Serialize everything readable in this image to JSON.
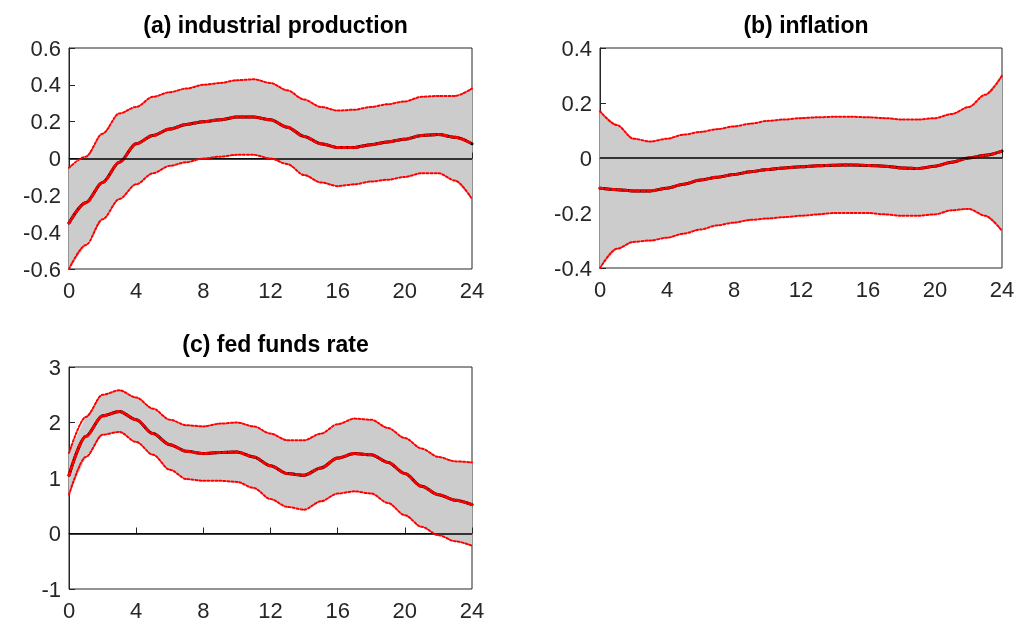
{
  "chart_data": [
    {
      "type": "line",
      "title": "(a) industrial production",
      "x": [
        0,
        1,
        2,
        3,
        4,
        5,
        6,
        7,
        8,
        9,
        10,
        11,
        12,
        13,
        14,
        15,
        16,
        17,
        18,
        19,
        20,
        21,
        22,
        23,
        24
      ],
      "xlim": [
        0,
        24
      ],
      "xticks": [
        0,
        4,
        8,
        12,
        16,
        20,
        24
      ],
      "ylim": [
        -0.6,
        0.6
      ],
      "yticks": [
        -0.6,
        -0.4,
        -0.2,
        0,
        0.2,
        0.4,
        0.6
      ],
      "grid": false,
      "marker": "none",
      "ref_lines": [
        {
          "axis": "y",
          "value": 0,
          "color": "#000000",
          "line_style": "solid"
        }
      ],
      "series": [
        {
          "color": "#000000",
          "line_style": "solid",
          "values": [
            -0.35,
            -0.24,
            -0.13,
            -0.02,
            0.08,
            0.125,
            0.16,
            0.185,
            0.2,
            0.21,
            0.225,
            0.225,
            0.21,
            0.17,
            0.12,
            0.08,
            0.06,
            0.06,
            0.075,
            0.09,
            0.105,
            0.125,
            0.13,
            0.115,
            0.08
          ],
          "lower": [
            -0.6,
            -0.47,
            -0.33,
            -0.22,
            -0.14,
            -0.08,
            -0.04,
            -0.02,
            0.0,
            0.01,
            0.02,
            0.02,
            0.0,
            -0.03,
            -0.09,
            -0.13,
            -0.15,
            -0.14,
            -0.125,
            -0.115,
            -0.1,
            -0.08,
            -0.08,
            -0.12,
            -0.22
          ],
          "upper": [
            -0.05,
            0.01,
            0.135,
            0.245,
            0.28,
            0.335,
            0.36,
            0.38,
            0.4,
            0.41,
            0.425,
            0.43,
            0.41,
            0.37,
            0.32,
            0.28,
            0.26,
            0.265,
            0.28,
            0.295,
            0.31,
            0.335,
            0.34,
            0.34,
            0.38
          ]
        },
        {
          "color": "#ff0000",
          "line_style": "dotted",
          "values": [
            -0.35,
            -0.24,
            -0.13,
            -0.02,
            0.08,
            0.125,
            0.16,
            0.185,
            0.2,
            0.21,
            0.225,
            0.225,
            0.21,
            0.17,
            0.12,
            0.08,
            0.06,
            0.06,
            0.075,
            0.09,
            0.105,
            0.125,
            0.13,
            0.115,
            0.08
          ]
        },
        {
          "color": "#ff0000",
          "line_style": "dotted",
          "values": [
            -0.6,
            -0.47,
            -0.33,
            -0.22,
            -0.14,
            -0.08,
            -0.04,
            -0.02,
            0.0,
            0.01,
            0.02,
            0.02,
            0.0,
            -0.03,
            -0.09,
            -0.13,
            -0.15,
            -0.14,
            -0.125,
            -0.115,
            -0.1,
            -0.08,
            -0.08,
            -0.12,
            -0.22
          ]
        },
        {
          "color": "#ff0000",
          "line_style": "dotted",
          "values": [
            -0.05,
            0.01,
            0.135,
            0.245,
            0.28,
            0.335,
            0.36,
            0.38,
            0.4,
            0.41,
            0.425,
            0.43,
            0.41,
            0.37,
            0.32,
            0.28,
            0.26,
            0.265,
            0.28,
            0.295,
            0.31,
            0.335,
            0.34,
            0.34,
            0.38
          ]
        }
      ]
    },
    {
      "type": "line",
      "title": "(b) inflation",
      "x": [
        0,
        1,
        2,
        3,
        4,
        5,
        6,
        7,
        8,
        9,
        10,
        11,
        12,
        13,
        14,
        15,
        16,
        17,
        18,
        19,
        20,
        21,
        22,
        23,
        24
      ],
      "xlim": [
        0,
        24
      ],
      "xticks": [
        0,
        4,
        8,
        12,
        16,
        20,
        24
      ],
      "ylim": [
        -0.4,
        0.4
      ],
      "yticks": [
        -0.4,
        -0.2,
        0,
        0.2,
        0.4
      ],
      "grid": false,
      "marker": "none",
      "ref_lines": [
        {
          "axis": "y",
          "value": 0,
          "color": "#000000",
          "line_style": "solid"
        }
      ],
      "series": [
        {
          "color": "#000000",
          "line_style": "solid",
          "values": [
            -0.11,
            -0.115,
            -0.12,
            -0.12,
            -0.11,
            -0.095,
            -0.08,
            -0.07,
            -0.06,
            -0.05,
            -0.042,
            -0.036,
            -0.032,
            -0.028,
            -0.026,
            -0.025,
            -0.027,
            -0.03,
            -0.036,
            -0.038,
            -0.03,
            -0.015,
            0.0,
            0.01,
            0.025
          ],
          "lower": [
            -0.4,
            -0.33,
            -0.305,
            -0.3,
            -0.29,
            -0.275,
            -0.26,
            -0.245,
            -0.235,
            -0.225,
            -0.22,
            -0.215,
            -0.21,
            -0.205,
            -0.2,
            -0.2,
            -0.2,
            -0.205,
            -0.21,
            -0.21,
            -0.205,
            -0.19,
            -0.185,
            -0.21,
            -0.265
          ],
          "upper": [
            0.17,
            0.12,
            0.07,
            0.06,
            0.07,
            0.085,
            0.095,
            0.105,
            0.115,
            0.125,
            0.135,
            0.14,
            0.145,
            0.148,
            0.15,
            0.15,
            0.148,
            0.145,
            0.14,
            0.14,
            0.145,
            0.16,
            0.185,
            0.23,
            0.3
          ]
        },
        {
          "color": "#ff0000",
          "line_style": "dotted",
          "values": [
            -0.11,
            -0.115,
            -0.12,
            -0.12,
            -0.11,
            -0.095,
            -0.08,
            -0.07,
            -0.06,
            -0.05,
            -0.042,
            -0.036,
            -0.032,
            -0.028,
            -0.026,
            -0.025,
            -0.027,
            -0.03,
            -0.036,
            -0.038,
            -0.03,
            -0.015,
            0.0,
            0.01,
            0.025
          ]
        },
        {
          "color": "#ff0000",
          "line_style": "dotted",
          "values": [
            -0.4,
            -0.33,
            -0.305,
            -0.3,
            -0.29,
            -0.275,
            -0.26,
            -0.245,
            -0.235,
            -0.225,
            -0.22,
            -0.215,
            -0.21,
            -0.205,
            -0.2,
            -0.2,
            -0.2,
            -0.205,
            -0.21,
            -0.21,
            -0.205,
            -0.19,
            -0.185,
            -0.21,
            -0.265
          ]
        },
        {
          "color": "#ff0000",
          "line_style": "dotted",
          "values": [
            0.17,
            0.12,
            0.07,
            0.06,
            0.07,
            0.085,
            0.095,
            0.105,
            0.115,
            0.125,
            0.135,
            0.14,
            0.145,
            0.148,
            0.15,
            0.15,
            0.148,
            0.145,
            0.14,
            0.14,
            0.145,
            0.16,
            0.185,
            0.23,
            0.3
          ]
        }
      ]
    },
    {
      "type": "line",
      "title": "(c) fed funds rate",
      "x": [
        0,
        1,
        2,
        3,
        4,
        5,
        6,
        7,
        8,
        9,
        10,
        11,
        12,
        13,
        14,
        15,
        16,
        17,
        18,
        19,
        20,
        21,
        22,
        23,
        24
      ],
      "xlim": [
        0,
        24
      ],
      "xticks": [
        0,
        4,
        8,
        12,
        16,
        20,
        24
      ],
      "ylim": [
        -1,
        3
      ],
      "yticks": [
        -1,
        0,
        1,
        2,
        3
      ],
      "grid": false,
      "marker": "none",
      "ref_lines": [
        {
          "axis": "y",
          "value": 0,
          "color": "#000000",
          "line_style": "solid"
        }
      ],
      "series": [
        {
          "color": "#000000",
          "line_style": "solid",
          "values": [
            1.05,
            1.75,
            2.12,
            2.2,
            2.05,
            1.8,
            1.6,
            1.48,
            1.44,
            1.46,
            1.47,
            1.38,
            1.22,
            1.08,
            1.05,
            1.18,
            1.36,
            1.44,
            1.42,
            1.28,
            1.08,
            0.85,
            0.7,
            0.6,
            0.52
          ],
          "lower": [
            0.7,
            1.38,
            1.78,
            1.83,
            1.65,
            1.42,
            1.15,
            0.98,
            0.95,
            0.95,
            0.93,
            0.82,
            0.62,
            0.48,
            0.43,
            0.58,
            0.72,
            0.76,
            0.72,
            0.55,
            0.33,
            0.12,
            -0.03,
            -0.14,
            -0.22
          ],
          "upper": [
            1.45,
            2.1,
            2.5,
            2.58,
            2.45,
            2.25,
            2.05,
            1.95,
            1.93,
            1.98,
            2.0,
            1.93,
            1.8,
            1.68,
            1.68,
            1.8,
            1.97,
            2.07,
            2.05,
            1.9,
            1.72,
            1.53,
            1.38,
            1.3,
            1.28
          ]
        },
        {
          "color": "#ff0000",
          "line_style": "dotted",
          "values": [
            1.05,
            1.75,
            2.12,
            2.2,
            2.05,
            1.8,
            1.6,
            1.48,
            1.44,
            1.46,
            1.47,
            1.38,
            1.22,
            1.08,
            1.05,
            1.18,
            1.36,
            1.44,
            1.42,
            1.28,
            1.08,
            0.85,
            0.7,
            0.6,
            0.52
          ]
        },
        {
          "color": "#ff0000",
          "line_style": "dotted",
          "values": [
            0.7,
            1.38,
            1.78,
            1.83,
            1.65,
            1.42,
            1.15,
            0.98,
            0.95,
            0.95,
            0.93,
            0.82,
            0.62,
            0.48,
            0.43,
            0.58,
            0.72,
            0.76,
            0.72,
            0.55,
            0.33,
            0.12,
            -0.03,
            -0.14,
            -0.22
          ]
        },
        {
          "color": "#ff0000",
          "line_style": "dotted",
          "values": [
            1.45,
            2.1,
            2.5,
            2.58,
            2.45,
            2.25,
            2.05,
            1.95,
            1.93,
            1.98,
            2.0,
            1.93,
            1.8,
            1.68,
            1.68,
            1.8,
            1.97,
            2.07,
            2.05,
            1.9,
            1.72,
            1.53,
            1.38,
            1.3,
            1.28
          ]
        }
      ]
    }
  ]
}
